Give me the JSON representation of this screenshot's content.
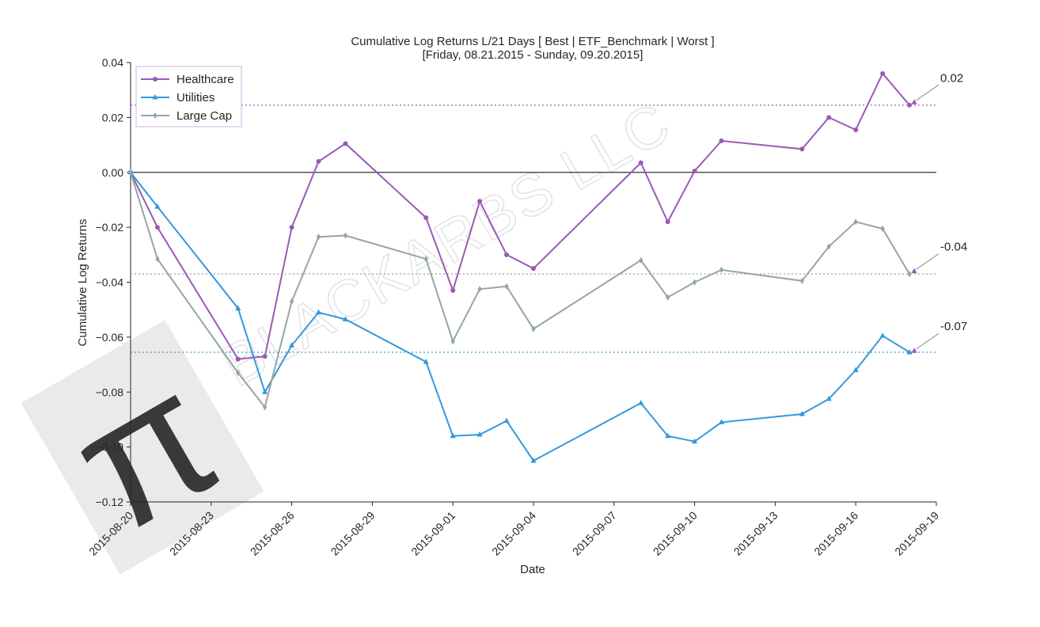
{
  "chart_data": {
    "type": "line",
    "title_line1": "Cumulative Log Returns L/21 Days [ Best | ETF_Benchmark | Worst ]",
    "title_line2": "[Friday, 08.21.2015 - Sunday, 09.20.2015]",
    "xlabel": "Date",
    "ylabel": "Cumulative Log Returns",
    "ylim": [
      -0.12,
      0.04
    ],
    "y_ticks": [
      0.04,
      0.02,
      0.0,
      -0.02,
      -0.04,
      -0.06,
      -0.08,
      -0.1,
      -0.12
    ],
    "y_tick_labels": [
      "0.04",
      "0.02",
      "0.00",
      "−0.02",
      "−0.04",
      "−0.06",
      "−0.08",
      "−0.10",
      "−0.12"
    ],
    "x_range_days": [
      0,
      30
    ],
    "x_ticks_days": [
      0,
      3,
      6,
      9,
      12,
      15,
      18,
      21,
      24,
      27,
      30
    ],
    "x_tick_labels": [
      "2015-08-20",
      "2015-08-23",
      "2015-08-26",
      "2015-08-29",
      "2015-09-01",
      "2015-09-04",
      "2015-09-07",
      "2015-09-10",
      "2015-09-13",
      "2015-09-16",
      "2015-09-19"
    ],
    "x_days": [
      0,
      1,
      4,
      5,
      6,
      7,
      8,
      11,
      12,
      13,
      14,
      15,
      19,
      20,
      21,
      22,
      25,
      26,
      27,
      28,
      29
    ],
    "series": [
      {
        "name": "Healthcare",
        "color": "#9b59b6",
        "marker": "circle",
        "values": [
          0.0,
          -0.02,
          -0.068,
          -0.067,
          -0.02,
          0.004,
          0.0105,
          -0.0165,
          -0.043,
          -0.0105,
          -0.03,
          -0.035,
          0.0035,
          -0.018,
          0.0005,
          0.0115,
          0.0085,
          0.02,
          0.0155,
          0.036,
          0.0245
        ],
        "final_label": "0.02",
        "final_marker_value": 0.0255
      },
      {
        "name": "Utilities",
        "color": "#3498db",
        "marker": "triangle",
        "values": [
          0.0,
          -0.0125,
          -0.0495,
          -0.08,
          -0.063,
          -0.051,
          -0.0535,
          -0.069,
          -0.096,
          -0.0955,
          -0.0905,
          -0.105,
          -0.084,
          -0.096,
          -0.098,
          -0.091,
          -0.088,
          -0.0825,
          -0.072,
          -0.0595,
          -0.0655
        ],
        "final_label": "-0.07",
        "final_marker_value": -0.065
      },
      {
        "name": "Large Cap",
        "color": "#95a5a6",
        "marker": "diamond",
        "values": [
          0.0,
          -0.0315,
          -0.073,
          -0.0855,
          -0.047,
          -0.0235,
          -0.023,
          -0.0315,
          -0.0615,
          -0.0425,
          -0.0415,
          -0.057,
          -0.032,
          -0.0455,
          -0.04,
          -0.0355,
          -0.0395,
          -0.027,
          -0.018,
          -0.0205,
          -0.037
        ],
        "final_label": "-0.04",
        "final_marker_value": -0.036
      }
    ],
    "zero_line": 0.0,
    "legend_position": "top-left"
  },
  "watermark": {
    "text": "BLACKARBS LLC",
    "logo_glyph": "π"
  }
}
